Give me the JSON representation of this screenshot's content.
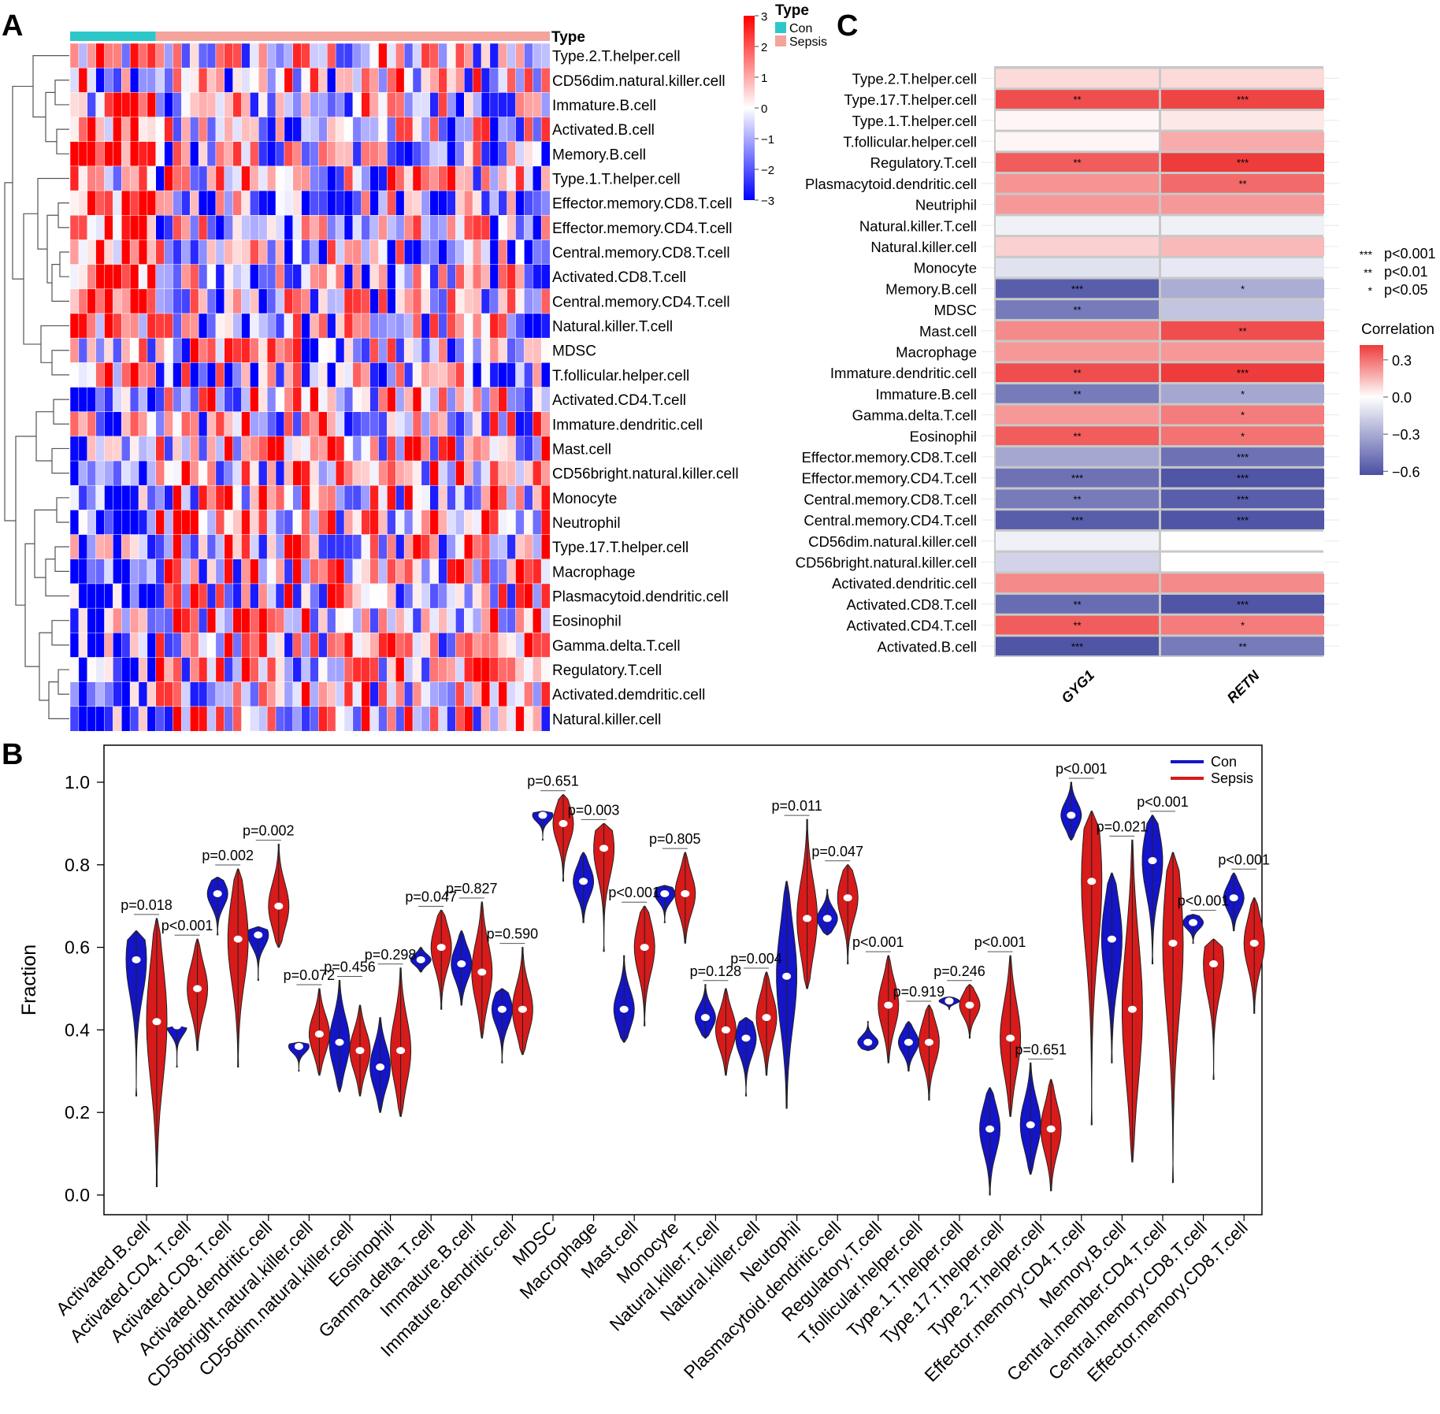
{
  "panels": {
    "a": "A",
    "b": "B",
    "c": "C"
  },
  "chart_data": [
    {
      "panel": "A",
      "type": "heatmap",
      "annotation_title": "Type",
      "groups": [
        {
          "name": "Con",
          "color": "#2ec7c9",
          "n_samples": 10
        },
        {
          "name": "Sepsis",
          "color": "#f4a49c",
          "n_samples": 46
        }
      ],
      "color_scale": {
        "ticks": [
          3,
          2,
          1,
          0,
          -1,
          -2,
          -3
        ],
        "high": "#ff0000",
        "mid": "#ffffff",
        "low": "#0000ff"
      },
      "rows": [
        "Type.2.T.helper.cell",
        "CD56dim.natural.killer.cell",
        "Immature.B.cell",
        "Activated.B.cell",
        "Memory.B.cell",
        "Type.1.T.helper.cell",
        "Effector.memory.CD8.T.cell",
        "Effector.memory.CD4.T.cell",
        "Central.memory.CD8.T.cell",
        "Activated.CD8.T.cell",
        "Central.memory.CD4.T.cell",
        "Natural.killer.T.cell",
        "MDSC",
        "T.follicular.helper.cell",
        "Activated.CD4.T.cell",
        "Immature.dendritic.cell",
        "Mast.cell",
        "CD56bright.natural.killer.cell",
        "Monocyte",
        "Neutrophil",
        "Type.17.T.helper.cell",
        "Macrophage",
        "Plasmacytoid.dendritic.cell",
        "Eosinophil",
        "Gamma.delta.T.cell",
        "Regulatory.T.cell",
        "Activated.demdritic.cell",
        "Natural.killer.cell"
      ],
      "row_trend": [
        0.2,
        0.05,
        0.5,
        1.0,
        1.0,
        0.3,
        1.3,
        1.3,
        1.3,
        1.3,
        1.3,
        0.7,
        -0.3,
        0.6,
        -1.0,
        -0.5,
        -1.2,
        -0.9,
        -1.0,
        -0.9,
        -0.8,
        -0.8,
        -0.8,
        -0.7,
        -0.9,
        -0.9,
        -1.0,
        -0.9
      ]
    },
    {
      "panel": "B",
      "type": "violin",
      "ylabel": "Fraction",
      "ylim": [
        0.0,
        1.0
      ],
      "yticks": [
        "0.0",
        "0.2",
        "0.4",
        "0.6",
        "0.8",
        "1.0"
      ],
      "legend": [
        {
          "name": "Con",
          "color": "#1414c8"
        },
        {
          "name": "Sepsis",
          "color": "#d71a1a"
        }
      ],
      "categories": [
        "Activated.B.cell",
        "Activated.CD4.T.cell",
        "Activated.CD8.T.cell",
        "Activated.dendritic.cell",
        "CD56bright.natural.killer.cell",
        "CD56dim.natural.killer.cell",
        "Eosinophil",
        "Gamma.delta.T.cell",
        "Immature.B.cell",
        "Immature.dendritic.cell",
        "MDSC",
        "Macrophage",
        "Mast.cell",
        "Monocyte",
        "Natural.killer.T.cell",
        "Natural.killer.cell",
        "Neutophil",
        "Plasmacytoid.dendritic.cell",
        "Regulatory.T.cell",
        "T.follicular.helper.cell",
        "Type.1.T.helper.cell",
        "Type.17.T.helper.cell",
        "Type.2.T.helper.cell",
        "Effector.memory.CD4.T.cell",
        "Memory.B.cell",
        "Central.member.CD4.T.cell",
        "Central.memory.CD8.T.cell",
        "Effector.memory.CD8.T.cell"
      ],
      "pvalues": [
        "p=0.018",
        "p<0.001",
        "p=0.002",
        "p=0.002",
        "p=0.072",
        "p=0.456",
        "p=0.298",
        "p=0.047",
        "p=0.827",
        "p=0.590",
        "p=0.651",
        "p=0.003",
        "p<0.001",
        "p=0.805",
        "p=0.128",
        "p=0.004",
        "p=0.011",
        "p=0.047",
        "p<0.001",
        "p=0.919",
        "p=0.246",
        "p<0.001",
        "p=0.651",
        "p<0.001",
        "p=0.021",
        "p<0.001",
        "p<0.001",
        "p<0.001"
      ],
      "series": [
        {
          "name": "Con",
          "min": [
            0.24,
            0.31,
            0.63,
            0.52,
            0.3,
            0.25,
            0.2,
            0.54,
            0.46,
            0.32,
            0.86,
            0.66,
            0.37,
            0.66,
            0.38,
            0.24,
            0.21,
            0.63,
            0.35,
            0.3,
            0.45,
            0.0,
            0.05,
            0.86,
            0.32,
            0.56,
            0.61,
            0.64
          ],
          "max": [
            0.64,
            0.41,
            0.77,
            0.65,
            0.37,
            0.52,
            0.43,
            0.6,
            0.64,
            0.5,
            0.93,
            0.83,
            0.58,
            0.75,
            0.51,
            0.43,
            0.76,
            0.74,
            0.42,
            0.42,
            0.48,
            0.26,
            0.32,
            1.0,
            0.78,
            0.92,
            0.68,
            0.78
          ],
          "median": [
            0.57,
            0.41,
            0.73,
            0.63,
            0.36,
            0.37,
            0.31,
            0.57,
            0.56,
            0.45,
            0.92,
            0.76,
            0.45,
            0.73,
            0.43,
            0.38,
            0.53,
            0.67,
            0.37,
            0.37,
            0.47,
            0.16,
            0.17,
            0.92,
            0.62,
            0.81,
            0.66,
            0.72
          ]
        },
        {
          "name": "Sepsis",
          "min": [
            0.02,
            0.35,
            0.31,
            0.6,
            0.29,
            0.24,
            0.19,
            0.45,
            0.38,
            0.34,
            0.76,
            0.59,
            0.41,
            0.61,
            0.29,
            0.29,
            0.5,
            0.56,
            0.32,
            0.23,
            0.38,
            0.19,
            0.01,
            0.17,
            0.08,
            0.03,
            0.28,
            0.44
          ],
          "max": [
            0.67,
            0.62,
            0.79,
            0.85,
            0.5,
            0.46,
            0.55,
            0.69,
            0.71,
            0.6,
            0.97,
            0.9,
            0.7,
            0.83,
            0.5,
            0.54,
            0.91,
            0.8,
            0.58,
            0.46,
            0.51,
            0.58,
            0.28,
            0.93,
            0.86,
            0.83,
            0.62,
            0.72
          ],
          "median": [
            0.42,
            0.5,
            0.62,
            0.7,
            0.39,
            0.35,
            0.35,
            0.6,
            0.54,
            0.45,
            0.9,
            0.84,
            0.6,
            0.73,
            0.4,
            0.43,
            0.67,
            0.72,
            0.46,
            0.37,
            0.46,
            0.38,
            0.16,
            0.76,
            0.45,
            0.61,
            0.56,
            0.61
          ]
        }
      ]
    },
    {
      "panel": "C",
      "type": "heatmap",
      "columns": [
        "GYG1",
        "RETN"
      ],
      "rows": [
        "Type.2.T.helper.cell",
        "Type.17.T.helper.cell",
        "Type.1.T.helper.cell",
        "T.follicular.helper.cell",
        "Regulatory.T.cell",
        "Plasmacytoid.dendritic.cell",
        "Neutriphil",
        "Natural.killer.T.cell",
        "Natural.killer.cell",
        "Monocyte",
        "Memory.B.cell",
        "MDSC",
        "Mast.cell",
        "Macrophage",
        "Immature.dendritic.cell",
        "Immature.B.cell",
        "Gamma.delta.T.cell",
        "Eosinophil",
        "Effector.memory.CD8.T.cell",
        "Effector.memory.CD4.T.cell",
        "Central.memory.CD8.T.cell",
        "Central.memory.CD4.T.cell",
        "CD56dim.natural.killer.cell",
        "CD56bright.natural.killer.cell",
        "Activated.dendritic.cell",
        "Activated.CD8.T.cell",
        "Activated.CD4.T.cell",
        "Activated.B.cell"
      ],
      "correlation": [
        [
          0.08,
          0.08
        ],
        [
          0.38,
          0.4
        ],
        [
          0.02,
          0.05
        ],
        [
          0.02,
          0.18
        ],
        [
          0.35,
          0.42
        ],
        [
          0.23,
          0.32
        ],
        [
          0.22,
          0.22
        ],
        [
          -0.05,
          -0.05
        ],
        [
          0.1,
          0.15
        ],
        [
          -0.1,
          -0.08
        ],
        [
          -0.55,
          -0.28
        ],
        [
          -0.45,
          -0.2
        ],
        [
          0.25,
          0.38
        ],
        [
          0.22,
          0.22
        ],
        [
          0.38,
          0.45
        ],
        [
          -0.45,
          -0.3
        ],
        [
          0.22,
          0.28
        ],
        [
          0.35,
          0.3
        ],
        [
          -0.3,
          -0.48
        ],
        [
          -0.48,
          -0.58
        ],
        [
          -0.45,
          -0.55
        ],
        [
          -0.55,
          -0.58
        ],
        [
          -0.05,
          0.0
        ],
        [
          -0.15,
          0.0
        ],
        [
          0.25,
          0.25
        ],
        [
          -0.5,
          -0.58
        ],
        [
          0.35,
          0.28
        ],
        [
          -0.58,
          -0.45
        ]
      ],
      "significance": [
        [
          "",
          ""
        ],
        [
          "**",
          "***"
        ],
        [
          "",
          ""
        ],
        [
          "",
          ""
        ],
        [
          "**",
          "***"
        ],
        [
          "",
          "**"
        ],
        [
          "",
          ""
        ],
        [
          "",
          ""
        ],
        [
          "",
          ""
        ],
        [
          "",
          ""
        ],
        [
          "***",
          "*"
        ],
        [
          "**",
          ""
        ],
        [
          "",
          "**"
        ],
        [
          "",
          ""
        ],
        [
          "**",
          "***"
        ],
        [
          "**",
          "*"
        ],
        [
          "",
          "*"
        ],
        [
          "**",
          "*"
        ],
        [
          "",
          "***"
        ],
        [
          "***",
          "***"
        ],
        [
          "**",
          "***"
        ],
        [
          "***",
          "***"
        ],
        [
          "",
          ""
        ],
        [
          "",
          ""
        ],
        [
          "",
          ""
        ],
        [
          "**",
          "***"
        ],
        [
          "**",
          "*"
        ],
        [
          "***",
          "**"
        ]
      ],
      "significance_legend": [
        {
          "symbol": "***",
          "label": "p<0.001"
        },
        {
          "symbol": "**",
          "label": "p<0.01"
        },
        {
          "symbol": "*",
          "label": "p<0.05"
        }
      ],
      "colorbar_title": "Correlation",
      "colorbar_ticks": [
        "0.3",
        "0.0",
        "−0.3",
        "−0.6"
      ],
      "colorbar_tick_values": [
        0.3,
        0.0,
        -0.3,
        -0.6
      ],
      "colors": {
        "positive": "#ee3b3b",
        "zero": "#ffffff",
        "negative": "#4a4fa3"
      }
    }
  ]
}
